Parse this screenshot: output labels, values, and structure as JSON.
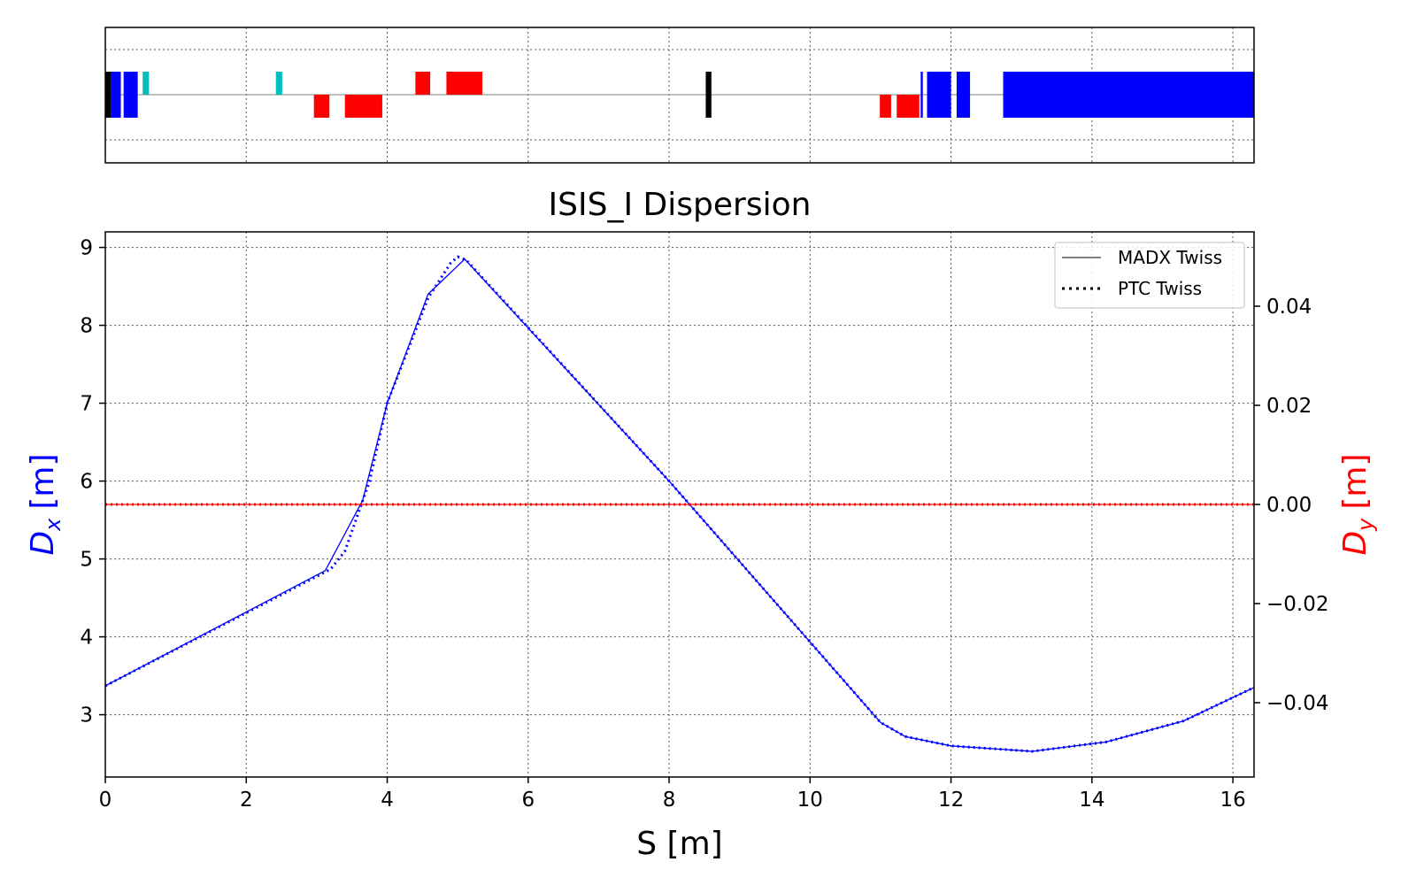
{
  "chart_data": [
    {
      "type": "lattice-layout",
      "xlim": [
        0,
        16.3
      ],
      "grid": true,
      "elements": [
        {
          "kind": "marker",
          "color": "#000000",
          "s_start": 0.0,
          "s_end": 0.08,
          "side": "both"
        },
        {
          "kind": "quadrupole",
          "color": "#0000ff",
          "s_start": 0.08,
          "s_end": 0.22,
          "side": "both"
        },
        {
          "kind": "quadrupole",
          "color": "#0000ff",
          "s_start": 0.26,
          "s_end": 0.46,
          "side": "both"
        },
        {
          "kind": "corrector",
          "color": "#00bfbf",
          "s_start": 0.53,
          "s_end": 0.62,
          "side": "top"
        },
        {
          "kind": "corrector",
          "color": "#00bfbf",
          "s_start": 2.42,
          "s_end": 2.51,
          "side": "top"
        },
        {
          "kind": "dipole",
          "color": "#ff0000",
          "s_start": 2.96,
          "s_end": 3.18,
          "side": "bottom"
        },
        {
          "kind": "dipole",
          "color": "#ff0000",
          "s_start": 3.4,
          "s_end": 3.93,
          "side": "bottom"
        },
        {
          "kind": "dipole",
          "color": "#ff0000",
          "s_start": 4.4,
          "s_end": 4.61,
          "side": "top"
        },
        {
          "kind": "dipole",
          "color": "#ff0000",
          "s_start": 4.84,
          "s_end": 5.35,
          "side": "top"
        },
        {
          "kind": "marker",
          "color": "#000000",
          "s_start": 8.52,
          "s_end": 8.6,
          "side": "both"
        },
        {
          "kind": "dipole",
          "color": "#ff0000",
          "s_start": 10.99,
          "s_end": 11.15,
          "side": "bottom"
        },
        {
          "kind": "dipole",
          "color": "#ff0000",
          "s_start": 11.23,
          "s_end": 11.55,
          "side": "bottom"
        },
        {
          "kind": "quadrupole",
          "color": "#0000ff",
          "s_start": 11.57,
          "s_end": 11.6,
          "side": "both"
        },
        {
          "kind": "quadrupole",
          "color": "#0000ff",
          "s_start": 11.66,
          "s_end": 12.0,
          "side": "both"
        },
        {
          "kind": "quadrupole",
          "color": "#0000ff",
          "s_start": 12.08,
          "s_end": 12.27,
          "side": "both"
        },
        {
          "kind": "quadrupole",
          "color": "#0000ff",
          "s_start": 12.74,
          "s_end": 16.3,
          "side": "both"
        }
      ]
    },
    {
      "type": "line",
      "title": "ISIS_I Dispersion",
      "xlabel": "S [m]",
      "ylabel_left": {
        "base": "D",
        "sub": "x",
        "unit": "[m]"
      },
      "ylabel_right": {
        "base": "D",
        "sub": "y",
        "unit": "[m]"
      },
      "xlim": [
        0,
        16.3
      ],
      "ylim_left": [
        2.2,
        9.2
      ],
      "ylim_right": [
        -0.055,
        0.055
      ],
      "xticks": [
        "0",
        "2",
        "4",
        "6",
        "8",
        "10",
        "12",
        "14",
        "16"
      ],
      "yticks_left": [
        "3",
        "4",
        "5",
        "6",
        "7",
        "8",
        "9"
      ],
      "yticks_right": [
        "0.04",
        "0.02",
        "0.00",
        "−0.02",
        "−0.04"
      ],
      "grid": true,
      "legend": {
        "placement": "top-right",
        "entries": [
          {
            "label": "MADX Twiss",
            "style": "solid"
          },
          {
            "label": "PTC Twiss",
            "style": "dotted"
          }
        ]
      },
      "series": [
        {
          "axis": "left",
          "color": "#0000ff",
          "style": "solid",
          "x": [
            0.0,
            3.12,
            3.65,
            4.0,
            4.58,
            5.1,
            8.0,
            11.0,
            11.35,
            12.0,
            13.15,
            14.2,
            15.3,
            16.3
          ],
          "y": [
            3.37,
            4.85,
            5.75,
            7.0,
            8.4,
            8.85,
            6.0,
            2.9,
            2.72,
            2.6,
            2.53,
            2.65,
            2.92,
            3.35
          ]
        },
        {
          "axis": "left",
          "color": "#0000ff",
          "style": "dotted",
          "x": [
            0.0,
            3.2,
            3.4,
            3.75,
            4.0,
            4.58,
            4.9,
            5.0,
            5.12,
            8.0,
            11.0,
            11.35,
            12.0,
            13.15,
            14.2,
            15.3,
            16.3
          ],
          "y": [
            3.37,
            4.87,
            5.1,
            6.0,
            7.0,
            8.35,
            8.8,
            8.88,
            8.84,
            6.0,
            2.9,
            2.72,
            2.6,
            2.53,
            2.65,
            2.92,
            3.35
          ]
        },
        {
          "axis": "right",
          "color": "#ff0000",
          "style": "solid",
          "x": [
            0.0,
            16.3
          ],
          "y": [
            0.0,
            0.0
          ]
        },
        {
          "axis": "right",
          "color": "#ff0000",
          "style": "dotted",
          "x": [
            0.0,
            16.3
          ],
          "y": [
            0.0,
            0.0
          ]
        }
      ]
    }
  ]
}
